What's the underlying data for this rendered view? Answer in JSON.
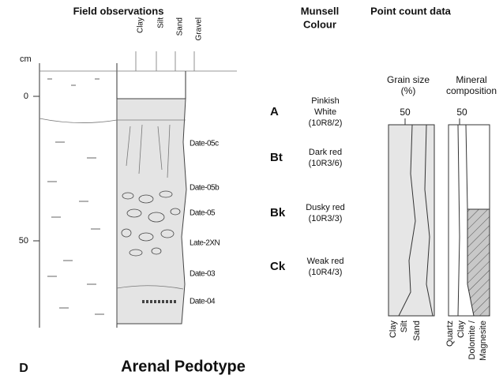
{
  "panel_label": "D",
  "title": "Arenal Pedotype",
  "field_observations": {
    "heading": "Field observations",
    "unit": "cm",
    "depth_ticks": [
      "0",
      "50"
    ],
    "texture_labels": [
      "Clay",
      "Silt",
      "Sand",
      "Gravel"
    ],
    "samples": [
      "Date-05c",
      "Date-05b",
      "Date-05",
      "Late-2XN",
      "Date-03",
      "Date-04"
    ]
  },
  "munsell": {
    "heading": [
      "Munsell",
      "Colour"
    ],
    "horizons": [
      {
        "name": "A",
        "colour": [
          "Pinkish",
          "White"
        ],
        "code": "(10R8/2)"
      },
      {
        "name": "Bt",
        "colour": [
          "Dark red"
        ],
        "code": "(10R3/6)"
      },
      {
        "name": "Bk",
        "colour": [
          "Dusky red"
        ],
        "code": "(10R3/3)"
      },
      {
        "name": "Ck",
        "colour": [
          "Weak red"
        ],
        "code": "(10R4/3)"
      }
    ]
  },
  "point_count": {
    "heading": "Point count data",
    "grain_size": {
      "title": [
        "Grain size",
        "(%)"
      ],
      "tick": "50",
      "labels": [
        "Clay",
        "Silt",
        "Sand"
      ]
    },
    "mineral": {
      "title": [
        "Mineral",
        "composition"
      ],
      "tick": "50",
      "labels": [
        "Quartz",
        "Clay",
        "Dolomite /",
        "Magnesite"
      ]
    }
  }
}
